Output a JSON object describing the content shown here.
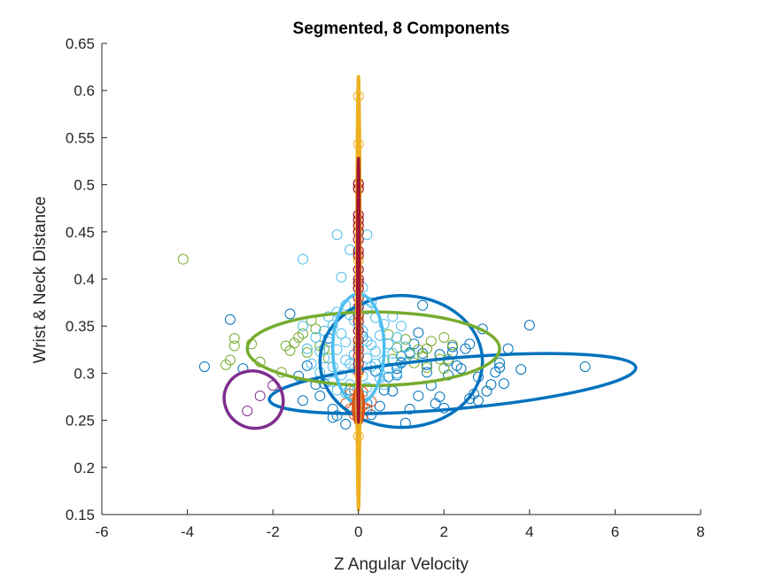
{
  "chart_data": {
    "type": "scatter",
    "title": "Segmented, 8 Components",
    "xlabel": "Z Angular Velocity",
    "ylabel": "Wrist & Neck Distance",
    "xlim": [
      -6,
      8
    ],
    "ylim": [
      0.15,
      0.65
    ],
    "xticks": [
      -6,
      -4,
      -2,
      0,
      2,
      4,
      6,
      8
    ],
    "yticks": [
      0.15,
      0.2,
      0.25,
      0.3,
      0.35,
      0.4,
      0.45,
      0.5,
      0.55,
      0.6,
      0.65
    ],
    "grid": false,
    "box": false,
    "colors": {
      "blue": "#0072BD",
      "orange": "#D95319",
      "yellow": "#EDB120",
      "purple": "#7E2F8E",
      "green": "#77AC30",
      "cyan": "#4DBEEE",
      "darkred": "#A2142F"
    },
    "components": [
      {
        "color": "#0072BD",
        "cx": 1.0,
        "cy": 0.3125,
        "rx": 1.9,
        "ry": 0.07,
        "angle_deg": 0
      },
      {
        "color": "#0072BD",
        "cx": 2.2,
        "cy": 0.289,
        "rx": 4.3,
        "ry": 0.027,
        "angle_deg": 5
      },
      {
        "color": "#77AC30",
        "cx": 0.35,
        "cy": 0.326,
        "rx": 2.95,
        "ry": 0.039,
        "angle_deg": 0
      },
      {
        "color": "#7E2F8E",
        "cx": -2.45,
        "cy": 0.272,
        "rx": 0.7,
        "ry": 0.03,
        "angle_deg": -30
      },
      {
        "color": "#4DBEEE",
        "cx": 0.0,
        "cy": 0.326,
        "rx": 0.6,
        "ry": 0.058,
        "angle_deg": 0
      },
      {
        "color": "#D95319",
        "cx": 0.0,
        "cy": 0.265,
        "rx": 0.12,
        "ry": 0.02,
        "angle_deg": 0
      },
      {
        "color": "#EDB120",
        "cx": 0.0,
        "cy": 0.385,
        "rx": 0.04,
        "ry": 0.23,
        "angle_deg": 0
      },
      {
        "color": "#A2142F",
        "cx": 0.0,
        "cy": 0.388,
        "rx": 0.02,
        "ry": 0.14,
        "angle_deg": 0
      }
    ],
    "series": [
      {
        "color": "#0072BD",
        "points": [
          [
            -3.6,
            0.307
          ],
          [
            -3.0,
            0.357
          ],
          [
            -2.7,
            0.305
          ],
          [
            -1.6,
            0.363
          ],
          [
            -1.4,
            0.297
          ],
          [
            -1.2,
            0.308
          ],
          [
            -1.0,
            0.288
          ],
          [
            -0.9,
            0.276
          ],
          [
            -0.6,
            0.262
          ],
          [
            -0.6,
            0.253
          ],
          [
            -0.3,
            0.246
          ],
          [
            0.2,
            0.268
          ],
          [
            0.5,
            0.265
          ],
          [
            0.6,
            0.282
          ],
          [
            0.7,
            0.296
          ],
          [
            0.9,
            0.305
          ],
          [
            1.0,
            0.311
          ],
          [
            1.2,
            0.262
          ],
          [
            1.1,
            0.247
          ],
          [
            1.3,
            0.331
          ],
          [
            1.5,
            0.321
          ],
          [
            1.5,
            0.372
          ],
          [
            1.6,
            0.309
          ],
          [
            1.7,
            0.287
          ],
          [
            1.8,
            0.268
          ],
          [
            1.9,
            0.32
          ],
          [
            2.0,
            0.263
          ],
          [
            2.1,
            0.313
          ],
          [
            2.2,
            0.328
          ],
          [
            2.3,
            0.308
          ],
          [
            2.5,
            0.326
          ],
          [
            2.6,
            0.273
          ],
          [
            2.7,
            0.278
          ],
          [
            2.8,
            0.296
          ],
          [
            2.8,
            0.271
          ],
          [
            2.9,
            0.347
          ],
          [
            3.0,
            0.281
          ],
          [
            3.2,
            0.301
          ],
          [
            3.3,
            0.311
          ],
          [
            3.4,
            0.289
          ],
          [
            3.5,
            0.326
          ],
          [
            4.0,
            0.351
          ],
          [
            3.1,
            0.288
          ],
          [
            2.4,
            0.305
          ],
          [
            1.4,
            0.276
          ],
          [
            0.9,
            0.298
          ],
          [
            -0.2,
            0.282
          ],
          [
            -0.8,
            0.289
          ],
          [
            2.1,
            0.298
          ],
          [
            1.2,
            0.322
          ],
          [
            0.8,
            0.281
          ],
          [
            2.6,
            0.331
          ],
          [
            3.3,
            0.306
          ],
          [
            1.9,
            0.275
          ],
          [
            -0.5,
            0.255
          ],
          [
            0.3,
            0.256
          ],
          [
            1.6,
            0.301
          ],
          [
            1.4,
            0.343
          ],
          [
            2.2,
            0.322
          ],
          [
            5.3,
            0.307
          ],
          [
            3.8,
            0.304
          ],
          [
            0.4,
            0.302
          ],
          [
            -1.3,
            0.271
          ],
          [
            -0.7,
            0.337
          ],
          [
            0.1,
            0.339
          ],
          [
            1.0,
            0.318
          ]
        ]
      },
      {
        "color": "#77AC30",
        "points": [
          [
            -4.1,
            0.421
          ],
          [
            -3.1,
            0.309
          ],
          [
            -3.0,
            0.314
          ],
          [
            -2.9,
            0.337
          ],
          [
            -2.9,
            0.329
          ],
          [
            -2.5,
            0.331
          ],
          [
            -1.7,
            0.329
          ],
          [
            -1.6,
            0.324
          ],
          [
            -1.5,
            0.332
          ],
          [
            -1.4,
            0.338
          ],
          [
            -1.3,
            0.342
          ],
          [
            -1.1,
            0.356
          ],
          [
            -1.0,
            0.347
          ],
          [
            -0.9,
            0.329
          ],
          [
            -0.8,
            0.326
          ],
          [
            0.7,
            0.341
          ],
          [
            0.9,
            0.327
          ],
          [
            1.2,
            0.321
          ],
          [
            1.3,
            0.311
          ],
          [
            1.4,
            0.325
          ],
          [
            1.5,
            0.318
          ],
          [
            1.6,
            0.306
          ],
          [
            1.7,
            0.334
          ],
          [
            1.9,
            0.315
          ],
          [
            2.0,
            0.338
          ],
          [
            2.2,
            0.33
          ],
          [
            2.0,
            0.305
          ],
          [
            1.1,
            0.336
          ],
          [
            -1.2,
            0.322
          ],
          [
            -0.7,
            0.316
          ],
          [
            -1.8,
            0.301
          ],
          [
            0.8,
            0.315
          ],
          [
            1.6,
            0.326
          ],
          [
            -2.3,
            0.312
          ],
          [
            2.1,
            0.315
          ]
        ]
      },
      {
        "color": "#7E2F8E",
        "points": [
          [
            -2.3,
            0.276
          ],
          [
            -2.0,
            0.287
          ],
          [
            -2.6,
            0.26
          ]
        ]
      },
      {
        "color": "#4DBEEE",
        "points": [
          [
            -0.5,
            0.447
          ],
          [
            0.2,
            0.447
          ],
          [
            -1.3,
            0.421
          ],
          [
            -0.2,
            0.431
          ],
          [
            -0.4,
            0.402
          ],
          [
            0.1,
            0.391
          ],
          [
            0.3,
            0.375
          ],
          [
            -0.5,
            0.365
          ],
          [
            -0.3,
            0.372
          ],
          [
            0.2,
            0.368
          ],
          [
            0.4,
            0.359
          ],
          [
            -0.6,
            0.351
          ],
          [
            -0.1,
            0.356
          ],
          [
            0.6,
            0.352
          ],
          [
            -0.8,
            0.345
          ],
          [
            -0.4,
            0.342
          ],
          [
            0.1,
            0.345
          ],
          [
            0.5,
            0.34
          ],
          [
            0.9,
            0.338
          ],
          [
            -1.0,
            0.338
          ],
          [
            -0.7,
            0.333
          ],
          [
            -0.3,
            0.333
          ],
          [
            0.2,
            0.334
          ],
          [
            0.7,
            0.331
          ],
          [
            1.1,
            0.328
          ],
          [
            -1.2,
            0.326
          ],
          [
            -0.9,
            0.323
          ],
          [
            -0.5,
            0.325
          ],
          [
            0.0,
            0.328
          ],
          [
            0.4,
            0.323
          ],
          [
            0.8,
            0.321
          ],
          [
            -0.8,
            0.316
          ],
          [
            -0.3,
            0.314
          ],
          [
            0.2,
            0.316
          ],
          [
            0.6,
            0.314
          ],
          [
            1.0,
            0.312
          ],
          [
            -0.6,
            0.307
          ],
          [
            -0.1,
            0.305
          ],
          [
            0.3,
            0.307
          ],
          [
            0.7,
            0.305
          ],
          [
            -0.9,
            0.301
          ],
          [
            -0.4,
            0.298
          ],
          [
            0.1,
            0.297
          ],
          [
            0.5,
            0.295
          ],
          [
            -0.6,
            0.291
          ],
          [
            -0.2,
            0.288
          ],
          [
            0.2,
            0.285
          ],
          [
            -0.3,
            0.279
          ],
          [
            0.1,
            0.276
          ],
          [
            -0.5,
            0.282
          ],
          [
            0.6,
            0.288
          ],
          [
            0.9,
            0.3
          ],
          [
            -1.1,
            0.31
          ],
          [
            1.2,
            0.32
          ],
          [
            -0.2,
            0.362
          ],
          [
            0.0,
            0.35
          ],
          [
            -0.1,
            0.32
          ],
          [
            0.3,
            0.33
          ],
          [
            -0.7,
            0.36
          ],
          [
            0.8,
            0.36
          ],
          [
            1.0,
            0.35
          ],
          [
            -1.3,
            0.35
          ],
          [
            -0.2,
            0.31
          ],
          [
            0.4,
            0.31
          ]
        ]
      },
      {
        "color": "#D95319",
        "points": [
          [
            -0.2,
            0.278
          ],
          [
            -0.1,
            0.272
          ],
          [
            0.0,
            0.268
          ],
          [
            0.1,
            0.265
          ],
          [
            -0.2,
            0.262
          ],
          [
            0.2,
            0.262
          ],
          [
            0.0,
            0.259
          ],
          [
            -0.1,
            0.256
          ],
          [
            0.1,
            0.254
          ],
          [
            0.0,
            0.274
          ],
          [
            -0.3,
            0.268
          ],
          [
            0.3,
            0.27
          ],
          [
            0.0,
            0.252
          ],
          [
            -0.1,
            0.282
          ],
          [
            0.1,
            0.28
          ]
        ]
      },
      {
        "color": "#EDB120",
        "points": [
          [
            0.0,
            0.594
          ],
          [
            0.0,
            0.543
          ],
          [
            0.0,
            0.502
          ],
          [
            0.0,
            0.495
          ],
          [
            0.0,
            0.455
          ],
          [
            0.0,
            0.42
          ],
          [
            0.0,
            0.39
          ],
          [
            0.0,
            0.36
          ],
          [
            0.0,
            0.33
          ],
          [
            0.0,
            0.3
          ],
          [
            0.0,
            0.27
          ],
          [
            0.0,
            0.233
          ]
        ]
      },
      {
        "color": "#A2142F",
        "points": [
          [
            0.0,
            0.501
          ],
          [
            0.0,
            0.496
          ],
          [
            0.0,
            0.468
          ],
          [
            0.0,
            0.463
          ],
          [
            0.0,
            0.457
          ],
          [
            0.0,
            0.45
          ],
          [
            0.0,
            0.442
          ],
          [
            0.0,
            0.43
          ],
          [
            0.0,
            0.425
          ],
          [
            0.0,
            0.41
          ],
          [
            0.0,
            0.4
          ],
          [
            0.0,
            0.396
          ],
          [
            0.0,
            0.39
          ],
          [
            0.0,
            0.38
          ],
          [
            0.0,
            0.37
          ],
          [
            0.0,
            0.362
          ],
          [
            0.0,
            0.355
          ],
          [
            0.0,
            0.345
          ],
          [
            0.0,
            0.335
          ],
          [
            0.0,
            0.325
          ],
          [
            0.0,
            0.318
          ],
          [
            0.0,
            0.31
          ],
          [
            0.0,
            0.303
          ]
        ]
      }
    ]
  }
}
